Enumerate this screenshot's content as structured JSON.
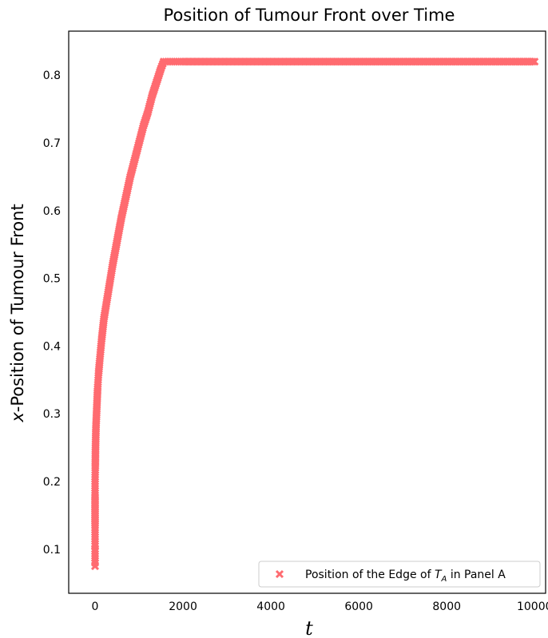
{
  "chart_data": {
    "type": "scatter",
    "title": "Position of Tumour Front over Time",
    "xlabel": "t",
    "ylabel_prefix": "x",
    "ylabel_rest": "-Position of Tumour Front",
    "xlim": [
      -600,
      10250
    ],
    "ylim": [
      0.035,
      0.865
    ],
    "xticks": [
      0,
      2000,
      4000,
      6000,
      8000,
      10000
    ],
    "xtick_labels": [
      "0",
      "2000",
      "4000",
      "6000",
      "8000",
      "10000"
    ],
    "yticks": [
      0.1,
      0.2,
      0.3,
      0.4,
      0.5,
      0.6,
      0.7,
      0.8
    ],
    "ytick_labels": [
      "0.1",
      "0.2",
      "0.3",
      "0.4",
      "0.5",
      "0.6",
      "0.7",
      "0.8"
    ],
    "grid": false,
    "legend_position": "bottom-right",
    "series": [
      {
        "name_prefix": "Position of the Edge of ",
        "name_math_main": "T",
        "name_math_sub": "A",
        "name_suffix": " in Panel A",
        "marker": "x",
        "color": "#ff6b70",
        "x": [
          0,
          0,
          0,
          0,
          0,
          0,
          0,
          0,
          0,
          0,
          0,
          0,
          5,
          10,
          20,
          40,
          60,
          80,
          100,
          150,
          200,
          300,
          400,
          500,
          600,
          700,
          800,
          900,
          1000,
          1100,
          1200,
          1300,
          1400,
          1500,
          1560,
          2000,
          3000,
          4000,
          5000,
          6000,
          7000,
          8000,
          9000,
          10000
        ],
        "y": [
          0.075,
          0.08,
          0.09,
          0.1,
          0.105,
          0.115,
          0.125,
          0.135,
          0.15,
          0.165,
          0.18,
          0.2,
          0.22,
          0.25,
          0.28,
          0.31,
          0.34,
          0.36,
          0.375,
          0.41,
          0.44,
          0.48,
          0.52,
          0.555,
          0.59,
          0.62,
          0.65,
          0.675,
          0.7,
          0.725,
          0.745,
          0.77,
          0.79,
          0.81,
          0.82,
          0.82,
          0.82,
          0.82,
          0.82,
          0.82,
          0.82,
          0.82,
          0.82,
          0.82
        ]
      }
    ]
  }
}
